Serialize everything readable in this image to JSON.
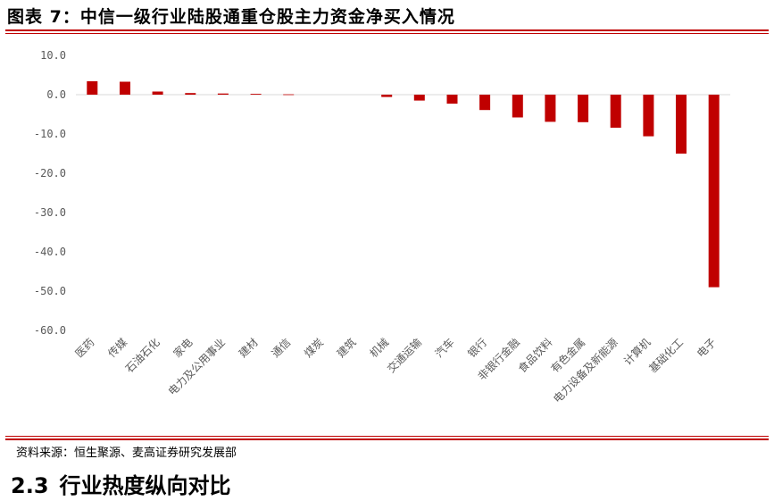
{
  "header": {
    "title": "图表 7：中信一级行业陆股通重仓股主力资金净买入情况"
  },
  "footer": {
    "source": "资料来源：恒生聚源、麦高证券研究发展部",
    "section_number": "2.3",
    "section_title": "行业热度纵向对比"
  },
  "colors": {
    "bar": "#c00000",
    "rule": "#c00000",
    "axis_text": "#595959",
    "zero_line": "#d9d9d9"
  },
  "chart_data": {
    "type": "bar",
    "title": "",
    "xlabel": "",
    "ylabel": "",
    "ylim": [
      -60,
      10
    ],
    "yticks": [
      10,
      0,
      -10,
      -20,
      -30,
      -40,
      -50,
      -60
    ],
    "ytick_labels": [
      "10.0",
      "0.0",
      "-10.0",
      "-20.0",
      "-30.0",
      "-40.0",
      "-50.0",
      "-60.0"
    ],
    "grid": false,
    "legend": "none",
    "categories": [
      "医药",
      "传媒",
      "石油石化",
      "家电",
      "电力及公用事业",
      "建材",
      "通信",
      "煤炭",
      "建筑",
      "机械",
      "交通运输",
      "汽车",
      "银行",
      "非银行金融",
      "食品饮料",
      "有色金属",
      "电力设备及新能源",
      "计算机",
      "基础化工",
      "电子"
    ],
    "values": [
      3.4,
      3.3,
      0.8,
      0.4,
      0.3,
      0.2,
      0.1,
      0.0,
      0.0,
      -0.6,
      -1.5,
      -2.3,
      -3.9,
      -5.8,
      -6.9,
      -7.0,
      -8.4,
      -10.6,
      -15.0,
      -49.0
    ]
  }
}
